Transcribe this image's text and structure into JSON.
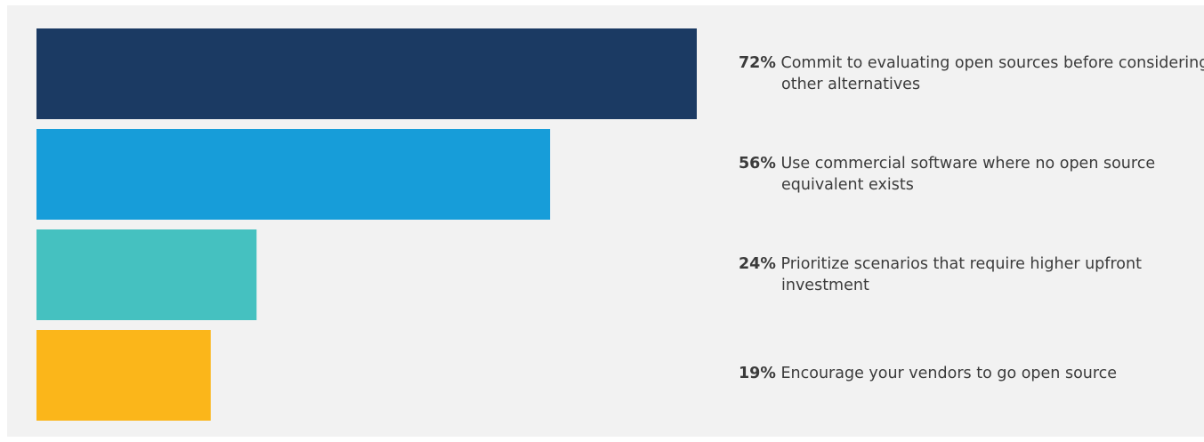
{
  "chart_data": {
    "type": "bar",
    "orientation": "horizontal",
    "grid": false,
    "legend": "none",
    "xlim": [
      0,
      72
    ],
    "values": [
      72,
      56,
      24,
      19
    ],
    "data_labels": [
      "72%",
      "56%",
      "24%",
      "19%"
    ],
    "categories": [
      "Commit to evaluating open sources before considering other alternatives",
      "Use commercial software where no open source equivalent exists",
      "Prioritize scenarios that require higher upfront investment",
      "Encourage your vendors to go open source"
    ],
    "colors": [
      "#1b3a63",
      "#179dd9",
      "#45c1c0",
      "#fbb61a"
    ]
  },
  "colors": {
    "panel_background": "#f2f2f2",
    "text": "#3b3b3b"
  }
}
